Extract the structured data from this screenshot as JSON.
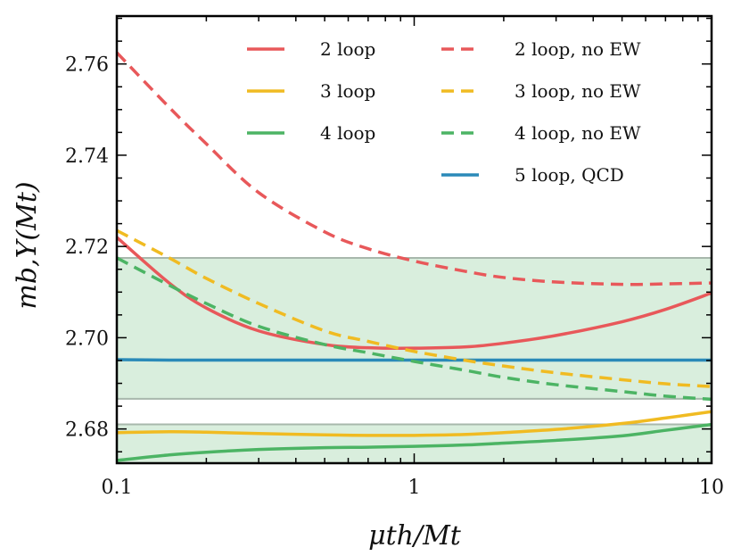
{
  "chart_data": {
    "type": "line",
    "title": "",
    "xlabel": "μth/Mt",
    "ylabel": "mb,Y(Mt)",
    "xscale": "log",
    "xlim": [
      0.1,
      10
    ],
    "ylim": [
      2.6725,
      2.7705
    ],
    "x_ticks": [
      {
        "value": 0.1,
        "label": "0.1"
      },
      {
        "value": 1,
        "label": "1"
      },
      {
        "value": 10,
        "label": "10"
      }
    ],
    "y_ticks": [
      {
        "value": 2.68,
        "label": "2.68"
      },
      {
        "value": 2.7,
        "label": "2.70"
      },
      {
        "value": 2.72,
        "label": "2.72"
      },
      {
        "value": 2.74,
        "label": "2.74"
      },
      {
        "value": 2.76,
        "label": "2.76"
      }
    ],
    "bands": [
      {
        "name": "band-upper",
        "ymin": 2.6866,
        "ymax": 2.7175,
        "color": "#d9eedd",
        "edge": "#a8b8ac"
      },
      {
        "name": "band-lower",
        "ymin": 2.6725,
        "ymax": 2.681,
        "color": "#d9eedd",
        "edge": "#a8b8ac"
      }
    ],
    "x": [
      0.1,
      0.15,
      0.2,
      0.3,
      0.5,
      0.7,
      1,
      1.5,
      2,
      3,
      5,
      7,
      10
    ],
    "series": [
      {
        "name": "2 loop",
        "style": "solid",
        "color": "#e8585a",
        "values": [
          2.722,
          2.712,
          2.7065,
          2.7015,
          2.6985,
          2.6978,
          2.6977,
          2.698,
          2.6988,
          2.7005,
          2.7035,
          2.7062,
          2.7098
        ]
      },
      {
        "name": "3 loop",
        "style": "solid",
        "color": "#f0bb22",
        "values": [
          2.6792,
          2.6794,
          2.6793,
          2.679,
          2.6787,
          2.6786,
          2.6786,
          2.6788,
          2.6792,
          2.6799,
          2.6812,
          2.6824,
          2.6838
        ]
      },
      {
        "name": "4 loop",
        "style": "solid",
        "color": "#4cb464",
        "values": [
          2.6731,
          2.6743,
          2.6749,
          2.6755,
          2.6759,
          2.676,
          2.6762,
          2.6765,
          2.6769,
          2.6775,
          2.6785,
          2.6797,
          2.681
        ]
      },
      {
        "name": "5 loop,  QCD",
        "style": "solid",
        "color": "#2a8ab8",
        "values": [
          2.6952,
          2.6951,
          2.6951,
          2.6951,
          2.6951,
          2.6951,
          2.6951,
          2.6951,
          2.6951,
          2.6951,
          2.6951,
          2.6951,
          2.6951
        ]
      },
      {
        "name": "2 loop,  no EW",
        "style": "dashed",
        "color": "#e8585a",
        "values": [
          2.7625,
          2.7505,
          2.7425,
          2.7318,
          2.7232,
          2.7195,
          2.7168,
          2.7145,
          2.7132,
          2.7122,
          2.7117,
          2.7118,
          2.712
        ]
      },
      {
        "name": "3 loop,  no EW",
        "style": "dashed",
        "color": "#f0bb22",
        "values": [
          2.7235,
          2.7175,
          2.713,
          2.7075,
          2.7015,
          2.6992,
          2.697,
          2.695,
          2.6938,
          2.6923,
          2.6908,
          2.6899,
          2.6893
        ]
      },
      {
        "name": "4 loop,  no EW",
        "style": "dashed",
        "color": "#4cb464",
        "values": [
          2.7175,
          2.7115,
          2.7075,
          2.7025,
          2.6985,
          2.6967,
          2.6948,
          2.6928,
          2.6913,
          2.6897,
          2.6882,
          2.6872,
          2.6865
        ]
      }
    ],
    "legend": {
      "placement": "top-right",
      "columns": [
        [
          "2 loop",
          "3 loop",
          "4 loop"
        ],
        [
          "2 loop,  no EW",
          "3 loop,  no EW",
          "4 loop,  no EW",
          "5 loop,  QCD"
        ]
      ]
    }
  }
}
